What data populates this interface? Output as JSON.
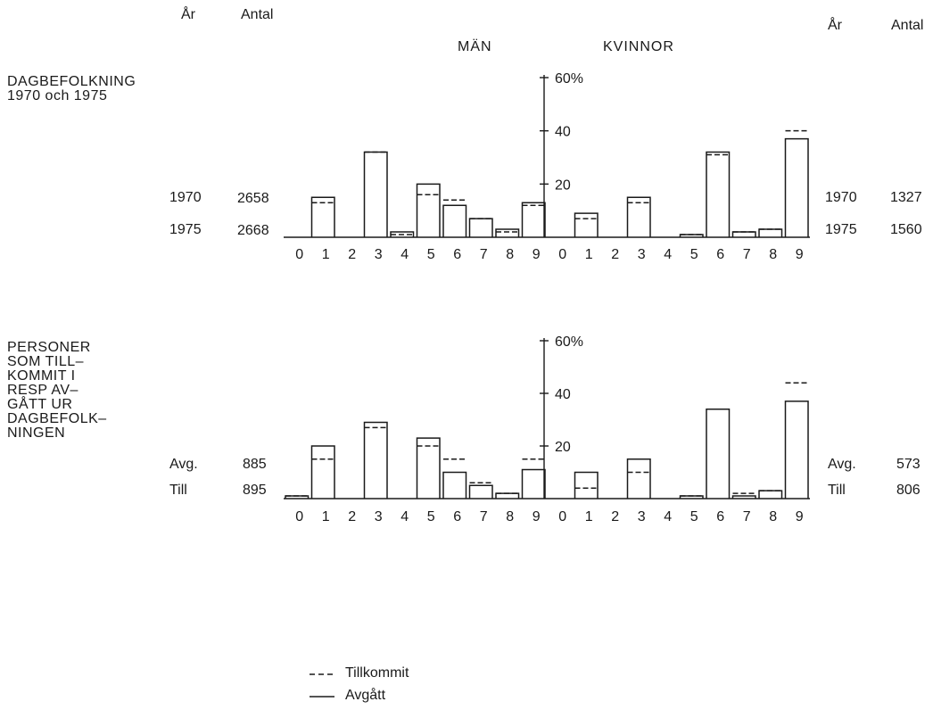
{
  "header": {
    "left_col1": "År",
    "left_col2": "Antal",
    "right_col1": "År",
    "right_col2": "Antal",
    "men": "MÄN",
    "women": "KVINNOR"
  },
  "panel1": {
    "title_lines": [
      "DAGBEFOLKNING",
      "1970 och 1975"
    ],
    "rows": [
      {
        "label": "1970",
        "men_count": "2658",
        "women_count": "1327"
      },
      {
        "label": "1975",
        "men_count": "2668",
        "women_count": "1560"
      }
    ]
  },
  "panel2": {
    "title_lines": [
      "PERSONER",
      "SOM TILL–",
      "KOMMIT I",
      "RESP AV–",
      "GÅTT UR",
      "DAGBEFOLK–",
      "NINGEN"
    ],
    "rows": [
      {
        "label": "Avg.",
        "men_count": "885",
        "women_count": "573"
      },
      {
        "label": "Till",
        "men_count": "895",
        "women_count": "806"
      }
    ]
  },
  "legend": {
    "dashed": "Tillkommit",
    "solid": "Avgått"
  },
  "colors": {
    "ink": "#1a1a1a",
    "background": "#ffffff"
  },
  "chart_data": [
    {
      "type": "bar",
      "panel": "DAGBEFOLKNING 1970 och 1975",
      "x_tick_labels": [
        "0",
        "1",
        "2",
        "3",
        "4",
        "5",
        "6",
        "7",
        "8",
        "9",
        "0",
        "1",
        "2",
        "3",
        "4",
        "5",
        "6",
        "7",
        "8",
        "9"
      ],
      "y_tick_labels": [
        "20",
        "40",
        "60%"
      ],
      "y_ticks": [
        20,
        40,
        60
      ],
      "ylim": [
        0,
        60
      ],
      "groups": [
        "MÄN",
        "KVINNOR"
      ],
      "series": [
        {
          "name": "Tillkommit",
          "style": "dashed",
          "men": [
            0,
            13,
            0,
            32,
            1,
            16,
            14,
            7,
            2,
            12
          ],
          "women": [
            0,
            7,
            0,
            13,
            0,
            1,
            31,
            2,
            3,
            40
          ]
        },
        {
          "name": "Avgått",
          "style": "solid",
          "men": [
            0,
            15,
            0,
            32,
            2,
            20,
            12,
            7,
            3,
            13
          ],
          "women": [
            0,
            9,
            0,
            15,
            0,
            1,
            32,
            2,
            3,
            37
          ]
        }
      ]
    },
    {
      "type": "bar",
      "panel": "PERSONER SOM TILLKOMMIT I RESP AVGÅTT UR DAGBEFOLKNINGEN",
      "x_tick_labels": [
        "0",
        "1",
        "2",
        "3",
        "4",
        "5",
        "6",
        "7",
        "8",
        "9",
        "0",
        "1",
        "2",
        "3",
        "4",
        "5",
        "6",
        "7",
        "8",
        "9"
      ],
      "y_tick_labels": [
        "20",
        "40",
        "60%"
      ],
      "y_ticks": [
        20,
        40,
        60
      ],
      "ylim": [
        0,
        60
      ],
      "groups": [
        "MÄN",
        "KVINNOR"
      ],
      "series": [
        {
          "name": "Tillkommit",
          "style": "dashed",
          "men": [
            1,
            15,
            0,
            27,
            0,
            20,
            15,
            6,
            2,
            15
          ],
          "women": [
            0,
            4,
            0,
            10,
            0,
            1,
            34,
            2,
            3,
            44
          ]
        },
        {
          "name": "Avgått",
          "style": "solid",
          "men": [
            1,
            20,
            0,
            29,
            0,
            23,
            10,
            5,
            2,
            11
          ],
          "women": [
            0,
            10,
            0,
            15,
            0,
            1,
            34,
            1,
            3,
            37
          ]
        }
      ]
    }
  ]
}
